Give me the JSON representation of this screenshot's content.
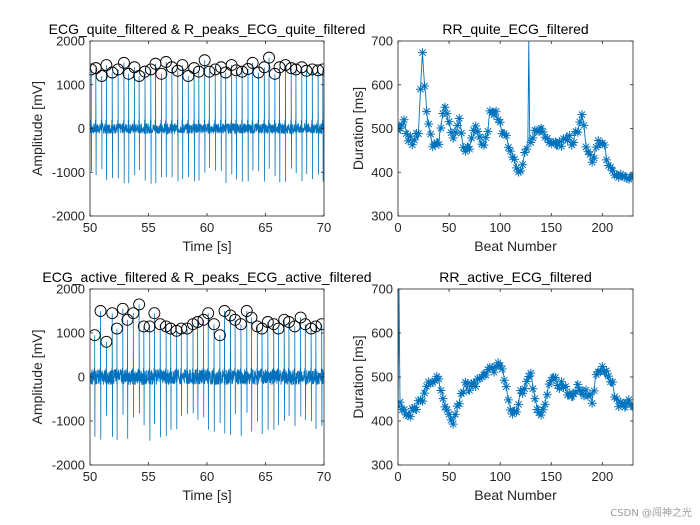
{
  "watermark": "CSDN @闯神之光",
  "colors": {
    "line": "#0072BD",
    "axis": "#262626",
    "marker": "#000000"
  },
  "chart_data": [
    {
      "id": "ecg-quite",
      "type": "line",
      "title": "ECG_quite_filtered & R_peaks_ECG_quite_filtered",
      "xlabel": "Time [s]",
      "ylabel": "Amplitude [mV]",
      "xlim": [
        50,
        70
      ],
      "ylim": [
        -2000,
        2000
      ],
      "xticks": [
        "50",
        "55",
        "60",
        "65",
        "70"
      ],
      "yticks": [
        "-2000",
        "-1000",
        "0",
        "1000",
        "2000"
      ],
      "signal": {
        "beat_interval_s": 0.47,
        "noise_mV": 120,
        "trough_range_mV": [
          -900,
          -1300
        ]
      },
      "r_peaks": {
        "marker": "circle",
        "t": [
          50.1,
          50.5,
          51.0,
          51.4,
          51.9,
          52.4,
          52.9,
          53.3,
          53.8,
          54.2,
          54.7,
          55.2,
          55.6,
          56.1,
          56.5,
          57.0,
          57.5,
          57.9,
          58.4,
          58.9,
          59.3,
          59.8,
          60.2,
          60.7,
          61.2,
          61.6,
          62.1,
          62.5,
          63.0,
          63.5,
          63.9,
          64.4,
          64.9,
          65.3,
          65.8,
          66.2,
          66.7,
          67.2,
          67.6,
          68.1,
          68.5,
          69.0,
          69.5,
          69.9
        ],
        "amp": [
          1350,
          1380,
          1200,
          1450,
          1280,
          1350,
          1500,
          1250,
          1400,
          1200,
          1300,
          1350,
          1480,
          1250,
          1520,
          1400,
          1320,
          1450,
          1200,
          1380,
          1300,
          1560,
          1300,
          1350,
          1400,
          1280,
          1450,
          1330,
          1300,
          1360,
          1500,
          1280,
          1400,
          1620,
          1250,
          1400,
          1450,
          1380,
          1350,
          1400,
          1320,
          1350,
          1330,
          1350
        ]
      }
    },
    {
      "id": "rr-quite",
      "type": "line",
      "title": "RR_quite_ECG_filtered",
      "xlabel": "Beat Number",
      "ylabel": "Duration [ms]",
      "xlim": [
        0,
        230
      ],
      "ylim": [
        300,
        700
      ],
      "xticks": [
        "0",
        "50",
        "100",
        "150",
        "200"
      ],
      "yticks": [
        "300",
        "400",
        "500",
        "600",
        "700"
      ],
      "marker": "asterisk",
      "spike": {
        "beat": 128,
        "value": 700
      },
      "keypoints": {
        "x": [
          0,
          5,
          10,
          15,
          20,
          24,
          26,
          30,
          35,
          40,
          45,
          50,
          55,
          60,
          65,
          70,
          75,
          80,
          85,
          90,
          95,
          100,
          105,
          110,
          115,
          120,
          125,
          130,
          135,
          140,
          145,
          150,
          155,
          160,
          165,
          170,
          175,
          180,
          185,
          190,
          195,
          200,
          205,
          210,
          215,
          220,
          225,
          230
        ],
        "y": [
          500,
          520,
          480,
          460,
          490,
          680,
          600,
          500,
          460,
          470,
          550,
          510,
          480,
          520,
          440,
          460,
          500,
          480,
          460,
          530,
          540,
          510,
          480,
          450,
          420,
          400,
          450,
          470,
          490,
          510,
          470,
          470,
          460,
          470,
          480,
          470,
          490,
          530,
          450,
          430,
          460,
          470,
          430,
          410,
          395,
          390,
          390,
          395
        ]
      }
    },
    {
      "id": "ecg-active",
      "type": "line",
      "title": "ECG_active_filtered & R_peaks_ECG_active_filtered",
      "xlabel": "Time [s]",
      "ylabel": "Amplitude [mV]",
      "xlim": [
        50,
        70
      ],
      "ylim": [
        -2000,
        2000
      ],
      "xticks": [
        "50",
        "55",
        "60",
        "65",
        "70"
      ],
      "yticks": [
        "-2000",
        "-1000",
        "0",
        "1000",
        "2000"
      ],
      "signal": {
        "beat_interval_s": 0.45,
        "noise_mV": 180,
        "trough_range_mV": [
          -800,
          -1450
        ]
      },
      "r_peaks": {
        "marker": "circle",
        "t": [
          50.4,
          50.9,
          51.4,
          51.9,
          52.3,
          52.8,
          53.2,
          53.7,
          54.2,
          54.6,
          55.1,
          55.5,
          56.0,
          56.5,
          56.9,
          57.4,
          57.8,
          58.3,
          58.8,
          59.2,
          59.7,
          60.1,
          60.6,
          61.1,
          61.5,
          62.0,
          62.4,
          62.9,
          63.4,
          63.8,
          64.3,
          64.7,
          65.2,
          65.7,
          66.1,
          66.6,
          67.0,
          67.5,
          68.0,
          68.4,
          68.9,
          69.3,
          69.8
        ],
        "amp": [
          950,
          1500,
          800,
          1450,
          1100,
          1550,
          1300,
          1450,
          1650,
          1150,
          1150,
          1450,
          1200,
          1150,
          1100,
          1050,
          1100,
          1100,
          1200,
          1250,
          1300,
          1450,
          1200,
          950,
          1500,
          1400,
          1300,
          1200,
          1500,
          1350,
          1150,
          1100,
          1250,
          1200,
          1100,
          1300,
          1250,
          1150,
          1350,
          1200,
          1100,
          1150,
          1200
        ]
      }
    },
    {
      "id": "rr-active",
      "type": "line",
      "title": "RR_active_ECG_filtered",
      "xlabel": "Beat Number",
      "ylabel": "Duration [ms]",
      "xlim": [
        0,
        230
      ],
      "ylim": [
        300,
        700
      ],
      "xticks": [
        "0",
        "50",
        "100",
        "150",
        "200"
      ],
      "yticks": [
        "300",
        "400",
        "500",
        "600",
        "700"
      ],
      "marker": "asterisk",
      "spike": {
        "beat": 1,
        "value": 700
      },
      "keypoints": {
        "x": [
          0,
          3,
          8,
          15,
          25,
          35,
          40,
          45,
          50,
          55,
          60,
          65,
          70,
          80,
          90,
          95,
          100,
          105,
          110,
          115,
          120,
          125,
          130,
          135,
          140,
          145,
          150,
          160,
          170,
          175,
          180,
          185,
          190,
          195,
          200,
          205,
          210,
          215,
          220,
          225,
          230
        ],
        "y": [
          440,
          440,
          410,
          420,
          460,
          500,
          490,
          450,
          410,
          400,
          440,
          480,
          470,
          500,
          520,
          520,
          530,
          490,
          430,
          420,
          460,
          480,
          500,
          440,
          420,
          450,
          500,
          480,
          450,
          480,
          460,
          460,
          450,
          520,
          520,
          500,
          480,
          440,
          430,
          440,
          430
        ]
      }
    }
  ]
}
